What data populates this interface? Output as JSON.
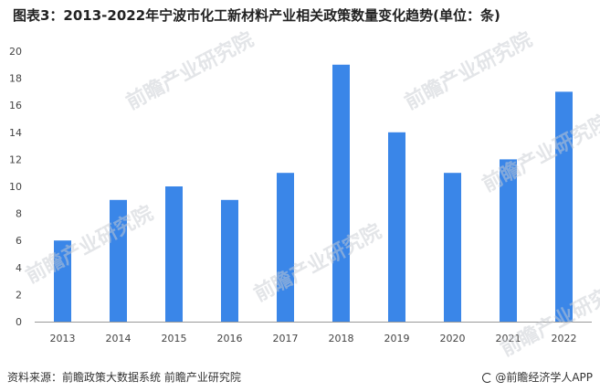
{
  "title": "图表3：2013-2022年宁波市化工新材料产业相关政策数量变化趋势(单位：条)",
  "footer": {
    "source": "资料来源：前瞻政策大数据系统 前瞻产业研究院",
    "brand": "@前瞻经济学人APP"
  },
  "watermark": "前瞻产业研究院",
  "colors": {
    "bar": "#3a86e8",
    "axis": "#666666",
    "tick_text": "#444444"
  },
  "chart_data": {
    "type": "bar",
    "title": "图表3：2013-2022年宁波市化工新材料产业相关政策数量变化趋势(单位：条)",
    "categories": [
      "2013",
      "2014",
      "2015",
      "2016",
      "2017",
      "2018",
      "2019",
      "2020",
      "2021",
      "2022"
    ],
    "values": [
      6,
      9,
      10,
      9,
      11,
      19,
      14,
      11,
      12,
      17
    ],
    "xlabel": "",
    "ylabel": "",
    "ylim": [
      0,
      20
    ],
    "yticks": [
      0,
      2,
      4,
      6,
      8,
      10,
      12,
      14,
      16,
      18,
      20
    ],
    "grid": false,
    "legend": "none"
  }
}
